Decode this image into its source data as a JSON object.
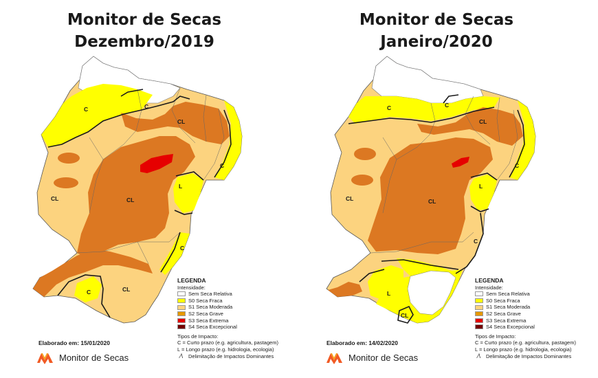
{
  "colors": {
    "none": "#ffffff",
    "s0": "#ffff00",
    "s1": "#fcd37f",
    "s2": "#e69800",
    "s3": "#e60000",
    "s4": "#730000",
    "base": "#fcd37f",
    "grave": "#dc7822",
    "abnormal": "#fbd07c"
  },
  "maps": [
    {
      "title_line1": "Monitor de Secas",
      "title_line2": "Dezembro/2019",
      "elaborado": "Elaborado em: 15/01/2020",
      "labels": {
        "c1": "C",
        "c2": "C",
        "cl1": "CL",
        "cl2": "CL",
        "cl3": "CL",
        "cl4": "CL",
        "c3": "C",
        "l1": "L",
        "c4": "C",
        "c5": "C"
      }
    },
    {
      "title_line1": "Monitor de Secas",
      "title_line2": "Janeiro/2020",
      "elaborado": "Elaborado em: 14/02/2020",
      "labels": {
        "c1": "C",
        "c2": "C",
        "cl1": "CL",
        "cl2": "CL",
        "cl3": "CL",
        "c3": "C",
        "l1": "L",
        "l2": "L",
        "c4": "C",
        "cl4": "CL"
      }
    }
  ],
  "legend": {
    "title": "LEGENDA",
    "intensity_title": "Intensidade:",
    "items": [
      {
        "label": "Sem Seca Relativa",
        "color": "#ffffff"
      },
      {
        "label": "S0 Seca Fraca",
        "color": "#ffff00"
      },
      {
        "label": "S1 Seca Moderada",
        "color": "#fcd37f"
      },
      {
        "label": "S2 Seca Grave",
        "color": "#e69800"
      },
      {
        "label": "S3 Seca Extrema",
        "color": "#e60000"
      },
      {
        "label": "S4 Seca Excepcional",
        "color": "#730000"
      }
    ],
    "impact_title": "Tipos de Impacto:",
    "impact_c": "C = Curto prazo (e.g. agricultura, pastagem)",
    "impact_l": "L = Longo prazo (e.g. hidrologia, ecologia)",
    "impact_line": "Delimitação de Impactos Dominantes"
  },
  "brand": {
    "name": "Monitor de Secas"
  }
}
